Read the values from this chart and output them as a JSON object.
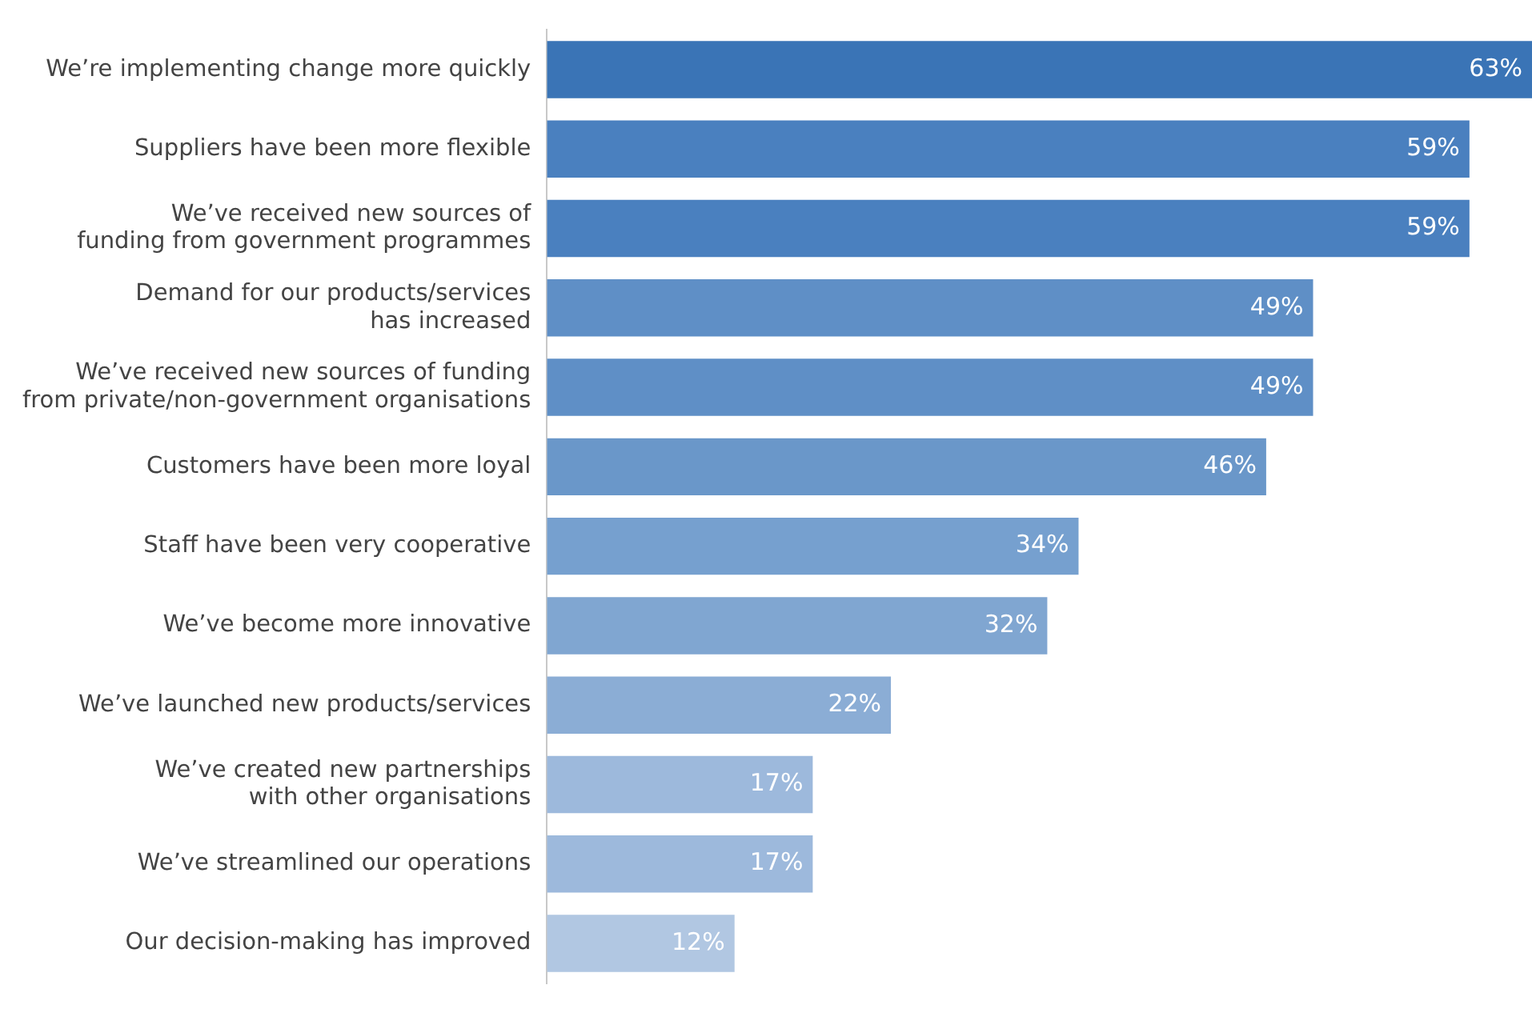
{
  "chart_data": {
    "type": "bar",
    "orientation": "horizontal",
    "categories": [
      "We’re implementing change more quickly",
      "Suppliers have been more flexible",
      "We’ve received new sources of\nfunding from government programmes",
      "Demand for our products/services\nhas increased",
      "We’ve received new sources of funding\nfrom private/non-government organisations",
      "Customers have been more loyal",
      "Staff have been very cooperative",
      "We’ve become more innovative",
      "We’ve launched new products/services",
      "We’ve created new partnerships\nwith other organisations",
      "We’ve streamlined our operations",
      "Our decision-making has improved"
    ],
    "values": [
      63,
      59,
      59,
      49,
      49,
      46,
      34,
      32,
      22,
      17,
      17,
      12
    ],
    "value_labels": [
      "63%",
      "59%",
      "59%",
      "49%",
      "49%",
      "46%",
      "34%",
      "32%",
      "22%",
      "17%",
      "17%",
      "12%"
    ],
    "colors": [
      "#3a74b6",
      "#4a80bf",
      "#4a80bf",
      "#5f8fc6",
      "#5f8fc6",
      "#6a97c9",
      "#76a0cf",
      "#80a6d1",
      "#8badd5",
      "#9db9dc",
      "#9db9dc",
      "#b1c7e2"
    ],
    "legend": false
  }
}
